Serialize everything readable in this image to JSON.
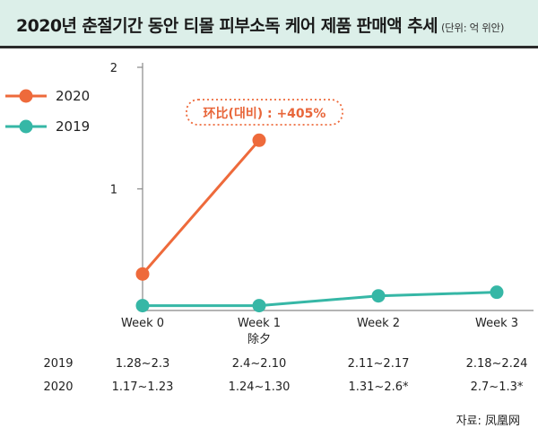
{
  "header": {
    "title": "2020년 춘절기간 동안 티몰 피부소독 케어 제품 판매액 추세",
    "subtitle": "(단위: 억 위안)"
  },
  "chart_data": {
    "type": "line",
    "categories": [
      "Week 0",
      "Week 1",
      "Week 2",
      "Week 3"
    ],
    "category_notes": [
      "",
      "除夕",
      "",
      ""
    ],
    "ylim": [
      0,
      2
    ],
    "yticks": [
      1,
      2
    ],
    "series": [
      {
        "name": "2020",
        "color": "#ee6a3b",
        "values": [
          0.3,
          1.4,
          null,
          null
        ]
      },
      {
        "name": "2019",
        "color": "#36b7a6",
        "values": [
          0.04,
          0.04,
          0.12,
          0.15
        ]
      }
    ],
    "annotation": "环比(대비) : +405%",
    "legend_position": "left",
    "date_rows": [
      {
        "label": "2019",
        "cells": [
          "1.28~2.3",
          "2.4~2.10",
          "2.11~2.17",
          "2.18~2.24"
        ]
      },
      {
        "label": "2020",
        "cells": [
          "1.17~1.23",
          "1.24~1.30",
          "1.31~2.6*",
          "2.7~1.3*"
        ]
      }
    ]
  },
  "source": "자료: 凤凰网"
}
